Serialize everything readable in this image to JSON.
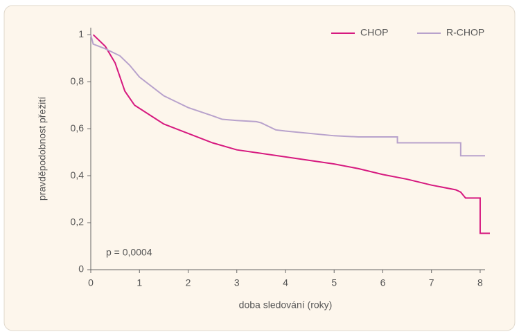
{
  "chart_data": {
    "type": "line",
    "xlabel": "doba sledování (roky)",
    "ylabel": "pravděpodobnost přežití",
    "annotation": "p = 0,0004",
    "xlim": [
      0,
      8.2
    ],
    "ylim": [
      0,
      1.03
    ],
    "xticks": [
      0,
      1,
      2,
      3,
      4,
      5,
      6,
      7,
      8
    ],
    "yticks": [
      0,
      {
        "value": 0.2,
        "label": "0,2"
      },
      {
        "value": 0.4,
        "label": "0,4"
      },
      {
        "value": 0.6,
        "label": "0,6"
      },
      {
        "value": 0.8,
        "label": "0,8"
      },
      1
    ],
    "legend": "top-right",
    "series": [
      {
        "name": "CHOP",
        "color": "#d6197f",
        "x": [
          0.05,
          0.3,
          0.5,
          0.7,
          0.9,
          1.2,
          1.5,
          2,
          2.5,
          3,
          3.5,
          4,
          4.5,
          5,
          5.5,
          6,
          6.5,
          7,
          7.5,
          7.6,
          7.7,
          8,
          8,
          8.2
        ],
        "values": [
          1.0,
          0.95,
          0.88,
          0.76,
          0.7,
          0.66,
          0.62,
          0.58,
          0.54,
          0.51,
          0.495,
          0.48,
          0.465,
          0.45,
          0.43,
          0.405,
          0.385,
          0.36,
          0.34,
          0.33,
          0.305,
          0.305,
          0.155,
          0.155
        ]
      },
      {
        "name": "R-CHOP",
        "color": "#b8a2cc",
        "x": [
          0,
          0.05,
          0.3,
          0.6,
          0.8,
          1,
          1.5,
          2,
          2.5,
          2.7,
          3,
          3.4,
          3.5,
          3.8,
          4,
          5,
          5.5,
          6.3,
          6.3,
          7.6,
          7.6,
          8.1
        ],
        "values": [
          1.0,
          0.96,
          0.94,
          0.91,
          0.87,
          0.82,
          0.74,
          0.69,
          0.655,
          0.64,
          0.635,
          0.63,
          0.625,
          0.595,
          0.59,
          0.57,
          0.565,
          0.565,
          0.54,
          0.54,
          0.485,
          0.485
        ]
      }
    ]
  }
}
